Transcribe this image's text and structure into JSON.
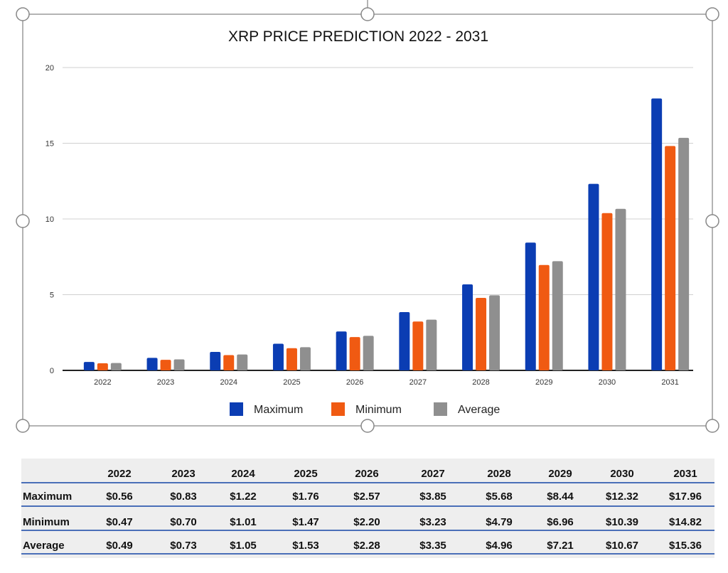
{
  "chart_data": {
    "type": "bar",
    "title": "XRP PRICE PREDICTION 2022 - 2031",
    "categories": [
      "2022",
      "2023",
      "2024",
      "2025",
      "2026",
      "2027",
      "2028",
      "2029",
      "2030",
      "2031"
    ],
    "series": [
      {
        "name": "Maximum",
        "color": "#0b3db3",
        "values": [
          0.56,
          0.83,
          1.22,
          1.76,
          2.57,
          3.85,
          5.68,
          8.44,
          12.32,
          17.96
        ]
      },
      {
        "name": "Minimum",
        "color": "#f05a12",
        "values": [
          0.47,
          0.7,
          1.01,
          1.47,
          2.2,
          3.23,
          4.79,
          6.96,
          10.39,
          14.82
        ]
      },
      {
        "name": "Average",
        "color": "#8f8f8f",
        "values": [
          0.49,
          0.73,
          1.05,
          1.53,
          2.28,
          3.35,
          4.96,
          7.21,
          10.67,
          15.36
        ]
      }
    ],
    "ylim": [
      0,
      20
    ],
    "yticks": [
      "0",
      "5",
      "10",
      "15",
      "20"
    ],
    "grid": true,
    "legend": "bottom"
  },
  "table": {
    "headers": [
      "2022",
      "2023",
      "2024",
      "2025",
      "2026",
      "2027",
      "2028",
      "2029",
      "2030",
      "2031"
    ],
    "rows": [
      {
        "label": "Maximum",
        "cells": [
          "$0.56",
          "$0.83",
          "$1.22",
          "$1.76",
          "$2.57",
          "$3.85",
          "$5.68",
          "$8.44",
          "$12.32",
          "$17.96"
        ]
      },
      {
        "label": "Minimum",
        "cells": [
          "$0.47",
          "$0.70",
          "$1.01",
          "$1.47",
          "$2.20",
          "$3.23",
          "$4.79",
          "$6.96",
          "$10.39",
          "$14.82"
        ]
      },
      {
        "label": "Average",
        "cells": [
          "$0.49",
          "$0.73",
          "$1.05",
          "$1.53",
          "$2.28",
          "$3.35",
          "$4.96",
          "$7.21",
          "$10.67",
          "$15.36"
        ]
      }
    ]
  }
}
